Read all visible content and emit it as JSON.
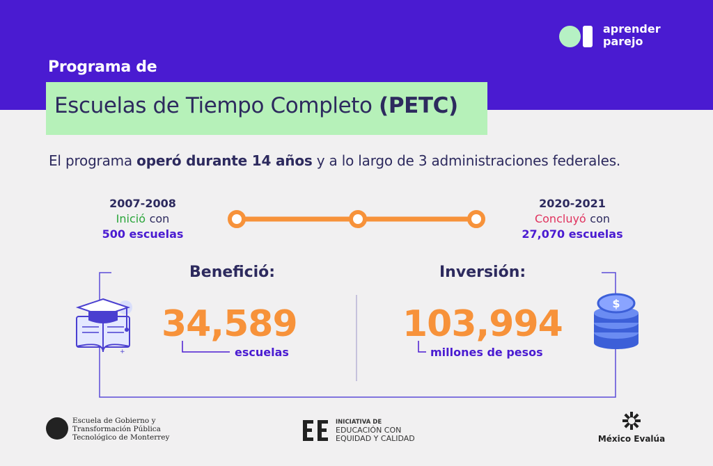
{
  "brand": {
    "line1": "aprender",
    "line2": "parejo"
  },
  "header": {
    "program_label": "Programa de",
    "title_main": "Escuelas de Tiempo Completo",
    "title_abbr": "(PETC)"
  },
  "summary": {
    "prefix": "El programa",
    "bold": "operó durante 14 años",
    "suffix": " y a lo largo de 3 administraciones federales."
  },
  "timeline": {
    "start": {
      "year": "2007-2008",
      "verb": "Inició",
      "connector": "con",
      "count": "500 escuelas"
    },
    "end": {
      "year": "2020-2021",
      "verb": "Concluyó",
      "connector": "con",
      "count": "27,070 escuelas"
    }
  },
  "benefit": {
    "heading": "Benefició:",
    "value": "34,589",
    "unit": "escuelas"
  },
  "investment": {
    "heading": "Inversión:",
    "value": "103,994",
    "unit": "millones de pesos"
  },
  "footer": {
    "egob": [
      "Escuela de Gobierno y",
      "Transformación Pública",
      "Tecnológico de Monterrey"
    ],
    "iniciativa": [
      "INICIATIVA DE",
      "EDUCACIÓN CON",
      "EQUIDAD Y CALIDAD"
    ],
    "mexico_evalua": "México Evalúa"
  },
  "colors": {
    "header": "#4a1bd1",
    "title_bg": "#b6f1b9",
    "accent_orange": "#f7923a",
    "accent_purple": "#4a1bd1",
    "text_dark": "#2d2a5e"
  }
}
